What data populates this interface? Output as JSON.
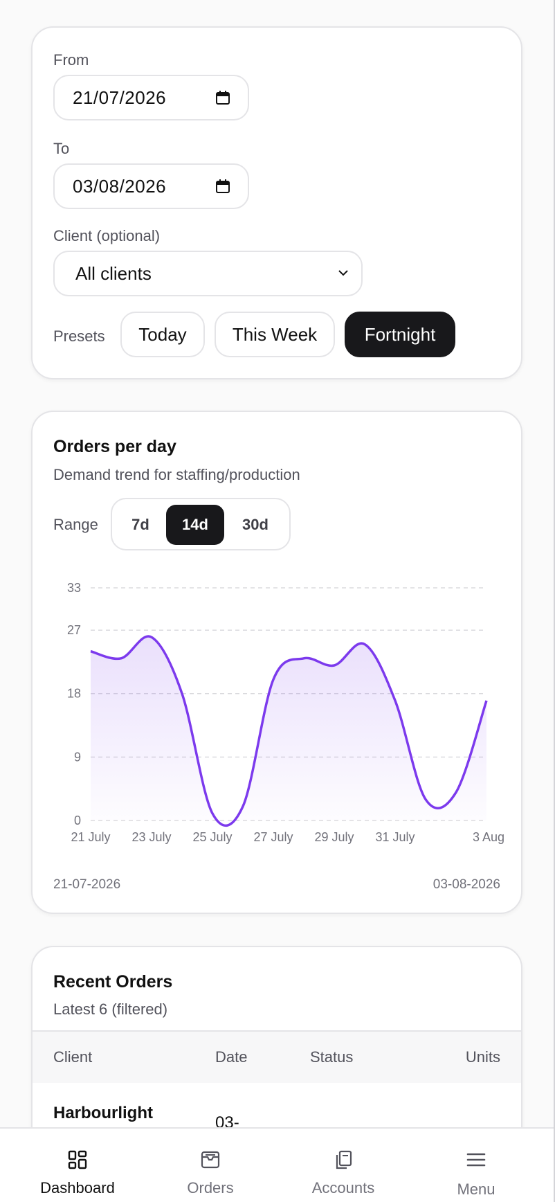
{
  "filters": {
    "from_label": "From",
    "from_value": "21/07/2026",
    "to_label": "To",
    "to_value": "03/08/2026",
    "client_label": "Client (optional)",
    "client_value": "All clients",
    "presets_label": "Presets",
    "presets": [
      {
        "label": "Today",
        "active": false
      },
      {
        "label": "This Week",
        "active": false
      },
      {
        "label": "Fortnight",
        "active": true
      }
    ]
  },
  "orders_chart": {
    "title": "Orders per day",
    "subtitle": "Demand trend for staffing/production",
    "range_label": "Range",
    "ranges": [
      {
        "label": "7d",
        "active": false
      },
      {
        "label": "14d",
        "active": true
      },
      {
        "label": "30d",
        "active": false
      }
    ],
    "start_date": "21-07-2026",
    "end_date": "03-08-2026"
  },
  "chart_data": {
    "type": "area",
    "title": "Orders per day",
    "x": [
      "21 July",
      "22 July",
      "23 July",
      "24 July",
      "25 July",
      "26 July",
      "27 July",
      "28 July",
      "29 July",
      "30 July",
      "31 July",
      "1 Aug",
      "2 Aug",
      "3 Aug"
    ],
    "x_tick_labels": [
      "21 July",
      "23 July",
      "25 July",
      "27 July",
      "29 July",
      "31 July",
      "3 Aug"
    ],
    "series": [
      {
        "values": [
          24,
          23,
          26,
          18,
          1,
          2,
          20,
          23,
          22,
          25,
          17,
          3,
          4,
          17
        ]
      }
    ],
    "y_ticks": [
      0,
      9,
      18,
      27,
      33
    ],
    "ylim": [
      0,
      33
    ],
    "grid": true,
    "color": "#7c3aed"
  },
  "recent_orders": {
    "title": "Recent Orders",
    "subtitle": "Latest 6 (filtered)",
    "columns": [
      "Client",
      "Date",
      "Status",
      "Units"
    ],
    "rows": [
      {
        "client": "Harbourlight",
        "date": "03-"
      }
    ]
  },
  "nav": {
    "items": [
      {
        "label": "Dashboard",
        "icon": "dashboard-icon",
        "active": true
      },
      {
        "label": "Orders",
        "icon": "orders-icon",
        "active": false
      },
      {
        "label": "Accounts",
        "icon": "accounts-icon",
        "active": false
      },
      {
        "label": "Menu",
        "icon": "menu-icon",
        "active": false
      }
    ]
  }
}
